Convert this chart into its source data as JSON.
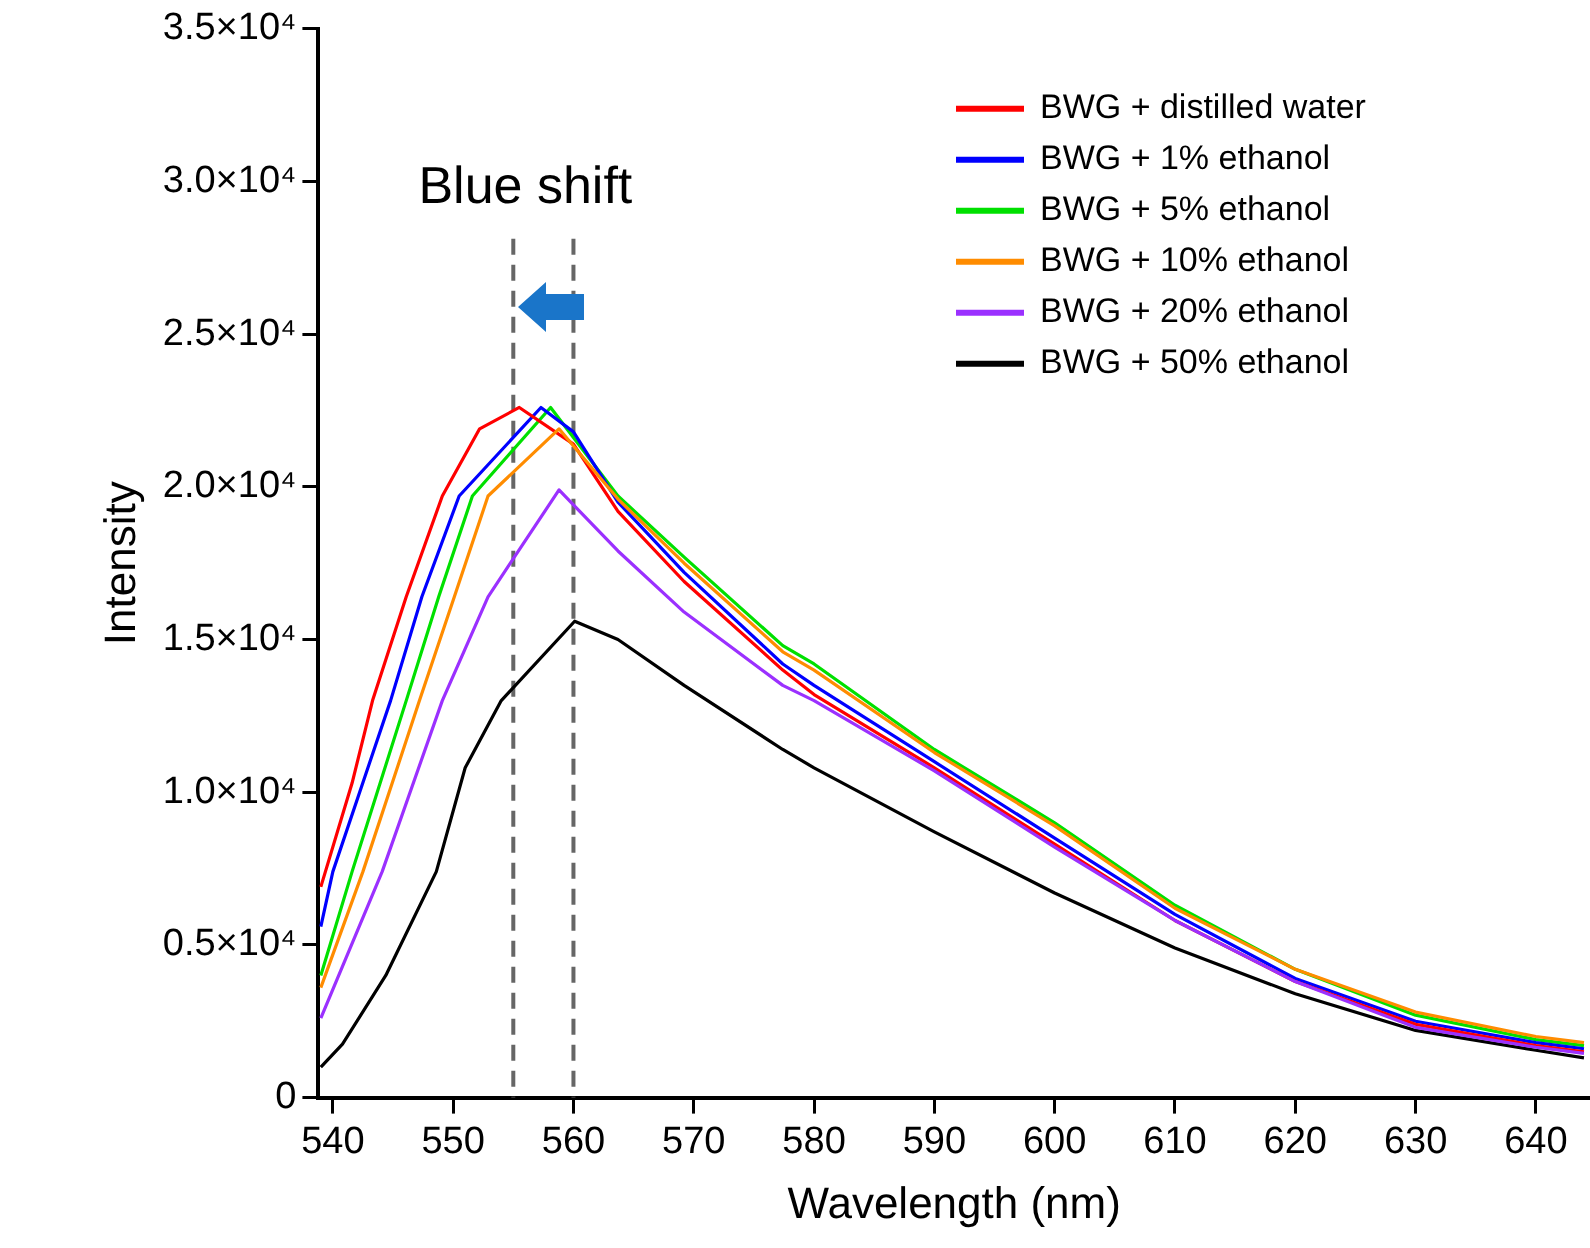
{
  "chart_data": {
    "type": "line",
    "xlabel": "Wavelength (nm)",
    "ylabel": "Intensity",
    "annotations": [
      "Blue shift"
    ],
    "xlim": [
      538.8,
      644.5
    ],
    "xticks": [
      540,
      550,
      560,
      570,
      580,
      590,
      600,
      610,
      620,
      630,
      640
    ],
    "ylim": [
      0,
      35000
    ],
    "yticks": [
      {
        "value": 0,
        "label": "0"
      },
      {
        "value": 5000,
        "label": "0.5×10⁴"
      },
      {
        "value": 10000,
        "label": "1.0×10⁴"
      },
      {
        "value": 15000,
        "label": "1.5×10⁴"
      },
      {
        "value": 20000,
        "label": "2.0×10⁴"
      },
      {
        "value": 25000,
        "label": "2.5×10⁴"
      },
      {
        "value": 30000,
        "label": "3.0×10⁴"
      },
      {
        "value": 35000,
        "label": "3.5×10⁴"
      }
    ],
    "grid": false,
    "legend": "top right",
    "marker": "none",
    "line_style": "solid",
    "ref_lines": [
      {
        "axis": "x",
        "value": 555,
        "label": null,
        "color": "#666666",
        "line_style": "dashed"
      },
      {
        "axis": "x",
        "value": 560,
        "label": null,
        "color": "#666666",
        "line_style": "dashed"
      }
    ],
    "series": [
      {
        "name": "BWG + distilled water",
        "color": "#ff0000",
        "x": [
          539,
          541.6,
          543.3,
          546.1,
          549.1,
          552.2,
          555.5,
          560,
          563.7,
          569.2,
          577.4,
          580,
          590,
          600,
          610,
          620,
          630,
          640,
          644
        ],
        "values": [
          6900,
          10300,
          13000,
          16400,
          19700,
          21900,
          22600,
          21400,
          19200,
          16900,
          14000,
          13200,
          10800,
          8300,
          5800,
          3800,
          2400,
          1700,
          1500
        ]
      },
      {
        "name": "BWG + 1% ethanol",
        "color": "#0000ff",
        "x": [
          539,
          540,
          544.8,
          547.4,
          550.5,
          557.3,
          560,
          563.7,
          569.2,
          577.4,
          580,
          590,
          600,
          610,
          620,
          630,
          640,
          644
        ],
        "values": [
          5600,
          7400,
          13000,
          16400,
          19700,
          22600,
          21800,
          19500,
          17200,
          14200,
          13500,
          11000,
          8500,
          6000,
          3900,
          2500,
          1800,
          1600
        ]
      },
      {
        "name": "BWG + 5% ethanol",
        "color": "#00e000",
        "x": [
          539,
          541.6,
          546.1,
          548.8,
          551.6,
          558.1,
          563.7,
          569.2,
          577.4,
          580,
          590,
          600,
          610,
          620,
          630,
          640,
          644
        ],
        "values": [
          4000,
          7400,
          13000,
          16400,
          19700,
          22600,
          19700,
          17700,
          14800,
          14200,
          11400,
          9000,
          6300,
          4200,
          2700,
          1900,
          1700
        ]
      },
      {
        "name": "BWG + 10% ethanol",
        "color": "#ff8c00",
        "x": [
          539,
          542.5,
          547.2,
          550.1,
          552.9,
          558.8,
          563.7,
          569.2,
          577.4,
          580,
          590,
          600,
          610,
          620,
          630,
          640,
          644
        ],
        "values": [
          3600,
          7400,
          13000,
          16400,
          19700,
          21900,
          19600,
          17500,
          14600,
          14000,
          11300,
          8900,
          6200,
          4200,
          2800,
          2000,
          1800
        ]
      },
      {
        "name": "BWG + 20% ethanol",
        "color": "#9b30ff",
        "x": [
          539,
          544.1,
          549.1,
          552.9,
          558.8,
          563.7,
          569.2,
          577.4,
          580,
          590,
          600,
          610,
          620,
          630,
          640,
          644
        ],
        "values": [
          2600,
          7400,
          13000,
          16400,
          19900,
          17900,
          15900,
          13500,
          13000,
          10700,
          8200,
          5800,
          3800,
          2300,
          1650,
          1450
        ]
      },
      {
        "name": "BWG + 50% ethanol",
        "color": "#000000",
        "x": [
          539,
          540.8,
          544.4,
          548.6,
          551,
          554,
          560.1,
          563.7,
          569.2,
          577.4,
          580,
          590,
          600,
          610,
          620,
          630,
          640,
          644
        ],
        "values": [
          1000,
          1750,
          4000,
          7400,
          10800,
          13000,
          15600,
          15000,
          13500,
          11400,
          10800,
          8700,
          6700,
          4900,
          3400,
          2200,
          1550,
          1300
        ]
      }
    ]
  }
}
